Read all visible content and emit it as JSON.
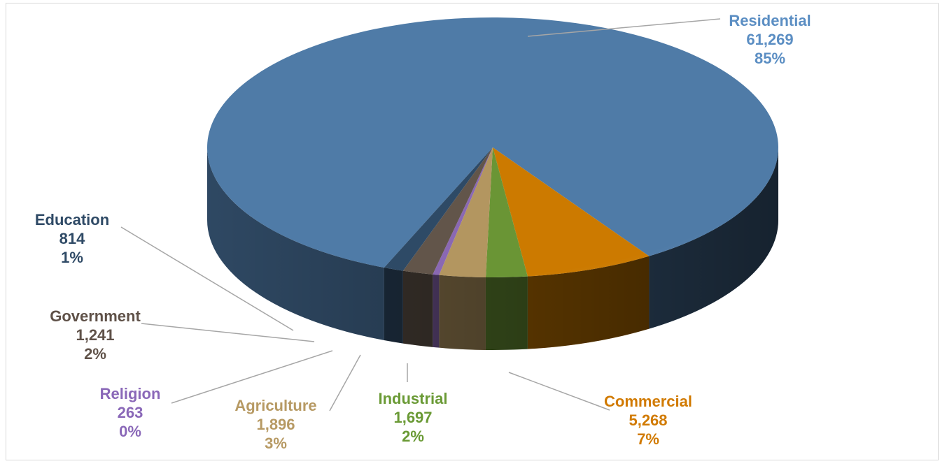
{
  "chart_data": {
    "type": "pie",
    "style": "3d",
    "title": "",
    "slices": [
      {
        "label": "Residential",
        "value": 61269,
        "value_text": "61,269",
        "percent": "85%",
        "color": "#4f7ba7",
        "label_color": "#5b8ec3"
      },
      {
        "label": "Commercial",
        "value": 5268,
        "value_text": "5,268",
        "percent": "7%",
        "color": "#cc7a00",
        "label_color": "#d17a00"
      },
      {
        "label": "Industrial",
        "value": 1697,
        "value_text": "1,697",
        "percent": "2%",
        "color": "#6a9535",
        "label_color": "#6a9a35"
      },
      {
        "label": "Agriculture",
        "value": 1896,
        "value_text": "1,896",
        "percent": "3%",
        "color": "#b39660",
        "label_color": "#b79a64"
      },
      {
        "label": "Religion",
        "value": 263,
        "value_text": "263",
        "percent": "0%",
        "color": "#8a68b3",
        "label_color": "#8a68b8"
      },
      {
        "label": "Government",
        "value": 1241,
        "value_text": "1,241",
        "percent": "2%",
        "color": "#62554a",
        "label_color": "#5f5148"
      },
      {
        "label": "Education",
        "value": 814,
        "value_text": "814",
        "percent": "1%",
        "color": "#2e4a66",
        "label_color": "#2f4a66"
      }
    ]
  }
}
